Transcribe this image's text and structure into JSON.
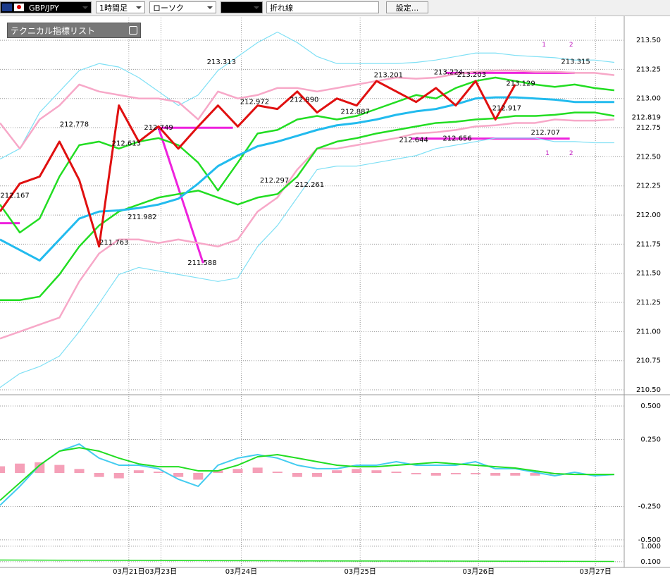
{
  "toolbar": {
    "symbol": "GBP/JPY",
    "timeframe": "1時間足",
    "chart_style": "ローソク",
    "line_type": "折れ線",
    "settings": "設定..."
  },
  "indicator_panel": {
    "title": "テクニカル指標リスト"
  },
  "chart_data": [
    {
      "type": "line",
      "x": [
        0,
        4,
        8,
        12,
        16,
        20,
        24,
        28,
        32,
        36,
        40,
        44,
        48,
        52,
        56,
        60,
        64,
        68,
        72,
        76,
        80,
        84,
        88,
        92,
        96,
        100,
        104,
        108,
        112,
        116,
        120,
        124
      ],
      "xlim": [
        0,
        126
      ],
      "xticks": [
        {
          "value": 26,
          "label": "03月21日"
        },
        {
          "value": 32.5,
          "label": "03月23日"
        },
        {
          "value": 48.7,
          "label": "03月24日"
        },
        {
          "value": 72.7,
          "label": "03月25日"
        },
        {
          "value": 96.6,
          "label": "03月26日"
        },
        {
          "value": 120.2,
          "label": "03月27日"
        }
      ],
      "ylim": [
        210.458,
        213.694
      ],
      "yticks": [
        {
          "value": 213.5,
          "label": "213.50"
        },
        {
          "value": 213.25,
          "label": "213.25"
        },
        {
          "value": 213,
          "label": "213.00"
        },
        {
          "value": 212.75,
          "label": "212.75"
        },
        {
          "value": 212.5,
          "label": "212.50"
        },
        {
          "value": 212.25,
          "label": "212.25"
        },
        {
          "value": 212,
          "label": "212.00"
        },
        {
          "value": 211.75,
          "label": "211.75"
        },
        {
          "value": 211.5,
          "label": "211.50"
        },
        {
          "value": 211.25,
          "label": "211.25"
        },
        {
          "value": 211,
          "label": "211.00"
        },
        {
          "value": 210.75,
          "label": "210.75"
        },
        {
          "value": 210.5,
          "label": "210.50"
        }
      ],
      "grid": true,
      "series": [
        {
          "color": "#7fe0f5",
          "width": 1.2,
          "values": [
            212.48,
            212.57,
            212.88,
            213.06,
            213.24,
            213.3,
            213.27,
            213.18,
            213.06,
            212.94,
            213.03,
            213.24,
            213.36,
            213.48,
            213.57,
            213.48,
            213.36,
            213.3,
            213.3,
            213.3,
            213.3,
            213.31,
            213.33,
            213.36,
            213.39,
            213.39,
            213.37,
            213.36,
            213.35,
            213.33,
            213.33,
            213.31
          ]
        },
        {
          "color": "#7fe0f5",
          "width": 1.2,
          "values": [
            210.52,
            210.64,
            210.7,
            210.79,
            211.0,
            211.24,
            211.49,
            211.55,
            211.52,
            211.49,
            211.46,
            211.43,
            211.46,
            211.73,
            211.91,
            212.15,
            212.39,
            212.42,
            212.42,
            212.45,
            212.48,
            212.51,
            212.57,
            212.6,
            212.63,
            212.66,
            212.66,
            212.66,
            212.63,
            212.63,
            212.62,
            212.62
          ]
        },
        {
          "color": "#f7a8c8",
          "width": 2.5,
          "values": [
            212.79,
            212.57,
            212.82,
            212.94,
            213.12,
            213.06,
            213.03,
            213.0,
            213.0,
            212.97,
            212.82,
            213.06,
            213.0,
            213.03,
            213.09,
            213.09,
            213.06,
            213.09,
            213.12,
            213.15,
            213.18,
            213.17,
            213.18,
            213.21,
            213.23,
            213.24,
            213.24,
            213.23,
            213.23,
            213.22,
            213.22,
            213.2
          ]
        },
        {
          "color": "#f7a8c8",
          "width": 2.5,
          "values": [
            210.94,
            211.0,
            211.06,
            211.12,
            211.43,
            211.67,
            211.79,
            211.79,
            211.76,
            211.79,
            211.76,
            211.73,
            211.79,
            212.03,
            212.15,
            212.39,
            212.57,
            212.57,
            212.6,
            212.63,
            212.66,
            212.7,
            212.71,
            212.73,
            212.76,
            212.77,
            212.79,
            212.79,
            212.82,
            212.81,
            212.81,
            212.82
          ]
        },
        {
          "color": "#22dd22",
          "width": 2.5,
          "values": [
            211.27,
            211.27,
            211.3,
            211.49,
            211.73,
            211.91,
            212.03,
            212.09,
            212.15,
            212.18,
            212.21,
            212.15,
            212.09,
            212.15,
            212.18,
            212.33,
            212.57,
            212.63,
            212.66,
            212.7,
            212.73,
            212.76,
            212.79,
            212.8,
            212.82,
            212.83,
            212.85,
            212.85,
            212.86,
            212.88,
            212.88,
            212.85
          ]
        },
        {
          "color": "#22dd22",
          "width": 2.5,
          "values": [
            212.09,
            211.85,
            211.97,
            212.33,
            212.6,
            212.63,
            212.57,
            212.63,
            212.66,
            212.6,
            212.45,
            212.21,
            212.45,
            212.7,
            212.73,
            212.82,
            212.85,
            212.82,
            212.85,
            212.91,
            212.97,
            213.03,
            213.0,
            213.09,
            213.15,
            213.18,
            213.15,
            213.12,
            213.1,
            213.12,
            213.09,
            213.07
          ]
        },
        {
          "color": "#22bbee",
          "width": 3,
          "values": [
            211.79,
            211.7,
            211.61,
            211.79,
            211.97,
            212.03,
            212.04,
            212.06,
            212.09,
            212.14,
            212.27,
            212.42,
            212.51,
            212.59,
            212.63,
            212.68,
            212.73,
            212.77,
            212.79,
            212.82,
            212.86,
            212.89,
            212.91,
            212.95,
            213.0,
            213.01,
            213.01,
            213.0,
            212.99,
            212.97,
            212.97,
            212.97
          ]
        },
        {
          "color": "#e01010",
          "width": 3,
          "values": [
            212.03,
            212.27,
            212.33,
            212.63,
            212.3,
            211.73,
            212.94,
            212.63,
            212.76,
            212.57,
            212.76,
            212.94,
            212.76,
            212.94,
            212.91,
            213.06,
            212.88,
            213.0,
            212.94,
            213.15,
            213.06,
            212.97,
            213.09,
            212.94,
            213.15,
            212.82,
            213.12,
            null,
            null,
            null,
            null,
            null
          ]
        }
      ],
      "level_color": "#ee22dd",
      "level_lines": [
        {
          "x": [
            32,
            47
          ],
          "values": [
            212.749,
            212.749
          ]
        },
        {
          "x": [
            32,
            41
          ],
          "values": [
            212.749,
            211.588
          ]
        },
        {
          "x": [
            90,
            116
          ],
          "values": [
            213.22,
            213.22
          ]
        },
        {
          "x": [
            83,
            115
          ],
          "values": [
            212.656,
            212.656
          ]
        },
        {
          "x": [
            0,
            4
          ],
          "values": [
            211.93,
            211.93
          ]
        }
      ],
      "price_labels": {
        "x": [
          15,
          3,
          25.5,
          32,
          23,
          28.7,
          40.8,
          44.7,
          51.4,
          55.4,
          61.4,
          62.5,
          71.7,
          78.4,
          83.5,
          90.5,
          95.2,
          92.3,
          105.1,
          102.3,
          110.1,
          116.2
        ],
        "values": [
          212.778,
          212.167,
          212.613,
          212.749,
          211.763,
          211.982,
          211.588,
          213.313,
          212.972,
          212.297,
          212.99,
          212.261,
          212.887,
          213.201,
          212.644,
          213.224,
          213.203,
          212.656,
          213.129,
          212.917,
          212.707,
          213.315
        ],
        "value_labels": [
          "212.778",
          "212.167",
          "212.613",
          "212.749",
          "211.763",
          "211.982",
          "211.588",
          "213.313",
          "212.972",
          "212.297",
          "212.990",
          "212.261",
          "212.887",
          "213.201",
          "212.644",
          "213.224",
          "213.203",
          "212.656",
          "213.129",
          "212.917",
          "212.707",
          "213.315"
        ]
      },
      "markers": [
        {
          "x": 110.5,
          "y": 212.53,
          "text": "1"
        },
        {
          "x": 115.3,
          "y": 212.53,
          "text": "2"
        },
        {
          "x": 109.8,
          "y": 213.46,
          "text": "1"
        },
        {
          "x": 115.3,
          "y": 213.46,
          "text": "2"
        }
      ],
      "current_price": 212.819
    },
    {
      "type": "line",
      "x": [
        0,
        4,
        8,
        12,
        16,
        20,
        24,
        28,
        32,
        36,
        40,
        44,
        48,
        52,
        56,
        60,
        64,
        68,
        72,
        76,
        80,
        84,
        88,
        92,
        96,
        100,
        104,
        108,
        112,
        116,
        120,
        124
      ],
      "xlim": [
        0,
        126
      ],
      "ylim": [
        -0.532,
        0.574
      ],
      "yticks": [
        {
          "value": 0.5,
          "label": "0.500"
        },
        {
          "value": 0.25,
          "label": "0.250"
        },
        {
          "value": -0.25,
          "label": "-0.250"
        },
        {
          "value": -0.5,
          "label": "-0.500"
        }
      ],
      "grid": true,
      "series": [
        {
          "color": "#f5a0b8",
          "style": "bar",
          "values": [
            0.05,
            0.07,
            0.08,
            0.06,
            0.03,
            -0.03,
            -0.04,
            0.02,
            0.01,
            -0.03,
            -0.05,
            0.02,
            0.03,
            0.04,
            0.01,
            -0.03,
            -0.03,
            0.02,
            0.03,
            0.02,
            0.01,
            -0.01,
            -0.02,
            -0.01,
            -0.01,
            -0.02,
            -0.02,
            -0.02,
            -0.01,
            0,
            0,
            0
          ]
        },
        {
          "color": "#44ccf0",
          "width": 2,
          "values": [
            -0.242,
            -0.1,
            0.058,
            0.163,
            0.216,
            0.111,
            0.058,
            0.058,
            0.032,
            -0.047,
            -0.1,
            0.058,
            0.111,
            0.137,
            0.111,
            0.058,
            0.032,
            0.032,
            0.058,
            0.058,
            0.084,
            0.058,
            0.058,
            0.058,
            0.084,
            0.032,
            0.032,
            0.005,
            -0.021,
            0.005,
            -0.021,
            -0.011
          ]
        },
        {
          "color": "#22dd22",
          "width": 2,
          "values": [
            -0.205,
            -0.074,
            0.058,
            0.163,
            0.189,
            0.163,
            0.111,
            0.068,
            0.047,
            0.047,
            0.016,
            0.016,
            0.058,
            0.121,
            0.137,
            0.111,
            0.084,
            0.058,
            0.047,
            0.047,
            0.058,
            0.068,
            0.079,
            0.068,
            0.058,
            0.047,
            0.037,
            0.016,
            -0.005,
            -0.011,
            -0.011,
            -0.011
          ]
        }
      ]
    },
    {
      "type": "line",
      "x": [
        0,
        62,
        124
      ],
      "xlim": [
        0,
        126
      ],
      "ylim": [
        -0.23,
        1.12
      ],
      "yticks": [
        {
          "value": 1,
          "label": "1.000"
        },
        {
          "value": 0.1,
          "label": "0.100"
        }
      ],
      "grid": true,
      "series": [
        {
          "color": "#22dd22",
          "width": 1.5,
          "values": [
            0.2,
            0.15,
            0.12
          ]
        }
      ]
    }
  ]
}
